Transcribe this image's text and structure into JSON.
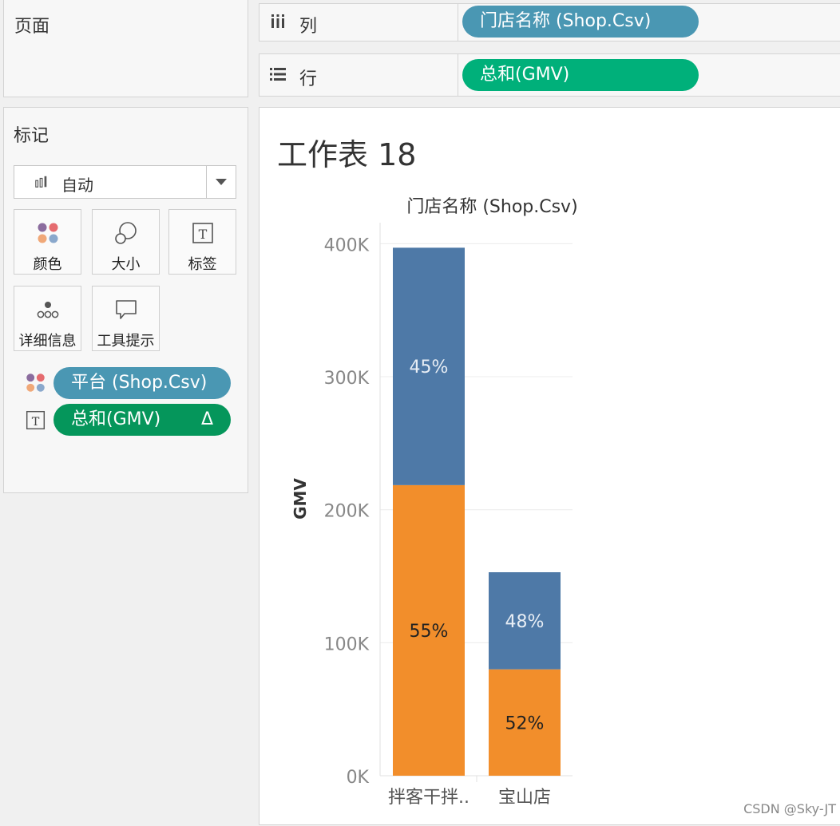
{
  "pages_panel": {
    "title": "页面"
  },
  "columns_shelf": {
    "label": "列",
    "pill": "门店名称 (Shop.Csv)"
  },
  "rows_shelf": {
    "label": "行",
    "pill": "总和(GMV)"
  },
  "marks_panel": {
    "title": "标记",
    "mark_type": "自动",
    "buttons": {
      "color": "颜色",
      "size": "大小",
      "label": "标签",
      "detail": "详细信息",
      "tooltip": "工具提示"
    },
    "fields": [
      {
        "icon": "color-dots-icon",
        "label": "平台 (Shop.Csv)"
      },
      {
        "icon": "text-label-icon",
        "label": "总和(GMV)",
        "badge": "Δ"
      }
    ]
  },
  "sheet": {
    "title": "工作表 18"
  },
  "watermark": "CSDN @Sky-JT",
  "colors": {
    "series_blue": "#4e79a7",
    "series_orange": "#f28e2b",
    "pill_blue": "#4a97b3",
    "pill_green": "#00b07a"
  },
  "chart_data": {
    "type": "bar",
    "stacked": true,
    "title": "工作表 18",
    "column_header": "门店名称 (Shop.Csv)",
    "xlabel": "",
    "ylabel": "GMV",
    "categories": [
      "拌客干拌..",
      "宝山店"
    ],
    "yticks": [
      "0K",
      "100K",
      "200K",
      "300K",
      "400K"
    ],
    "ytick_values": [
      0,
      100000,
      200000,
      300000,
      400000
    ],
    "ylim": [
      0,
      420000
    ],
    "grid": true,
    "series": [
      {
        "color": "#f28e2b",
        "values": [
          218500,
          80000
        ],
        "labels": [
          "55%",
          "52%"
        ]
      },
      {
        "color": "#4e79a7",
        "values": [
          178500,
          73000
        ],
        "labels": [
          "45%",
          "48%"
        ]
      }
    ]
  }
}
